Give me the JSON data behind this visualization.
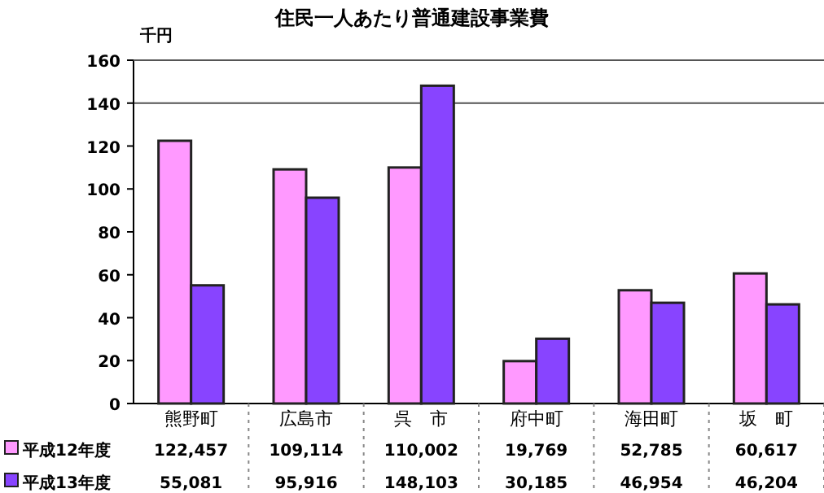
{
  "chart_data": {
    "type": "bar",
    "title": "住民一人あたり普通建設事業費",
    "ylabel": "千円",
    "categories": [
      "熊野町",
      "広島市",
      "呉　市",
      "府中町",
      "海田町",
      "坂　町"
    ],
    "series": [
      {
        "name": "平成12年度",
        "color": "#ff99ff",
        "values": [
          122.457,
          109.114,
          110.002,
          19.769,
          52.785,
          60.617
        ]
      },
      {
        "name": "平成13年度",
        "color": "#8844ff",
        "values": [
          55.081,
          95.916,
          148.103,
          30.185,
          46.954,
          46.204
        ]
      }
    ],
    "annotations": [
      "122,457",
      "109,114",
      "110,002",
      "19,769",
      "52,785",
      "60,617",
      "55,081",
      "95,916",
      "148,103",
      "30,185",
      "46,954",
      "46,204"
    ],
    "ylim": [
      0,
      160
    ],
    "yticks": [
      0,
      20,
      40,
      60,
      80,
      100,
      120,
      140,
      160
    ],
    "ref_lines": [
      {
        "axis": "y",
        "value": 140
      }
    ],
    "legend": "bottom"
  }
}
